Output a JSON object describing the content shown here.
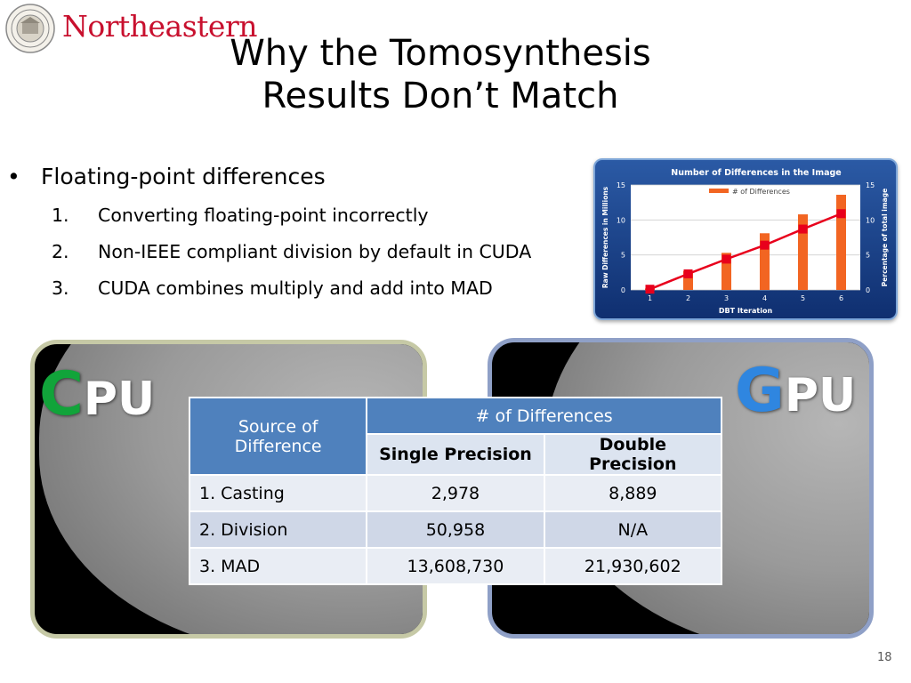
{
  "header": {
    "logo_text": "Northeastern",
    "title_line1": "Why the Tomosynthesis",
    "title_line2": "Results Don’t Match"
  },
  "bullets": {
    "main": "Floating-point differences",
    "sub": [
      {
        "num": "1.",
        "text": "Converting floating-point incorrectly"
      },
      {
        "num": "2.",
        "text": "Non-IEEE compliant division by default in CUDA"
      },
      {
        "num": "3.",
        "text": "CUDA combines multiply and add into MAD"
      }
    ]
  },
  "panels": {
    "cpu": {
      "cap": "C",
      "rest": "PU"
    },
    "gpu": {
      "cap": "G",
      "rest": "PU"
    }
  },
  "table": {
    "header_source": "Source of Difference",
    "header_group": "# of Differences",
    "header_single": "Single Precision",
    "header_double": "Double Precision",
    "rows": [
      {
        "source": "1. Casting",
        "single": "2,978",
        "double": "8,889"
      },
      {
        "source": "2. Division",
        "single": "50,958",
        "double": "N/A"
      },
      {
        "source": "3. MAD",
        "single": "13,608,730",
        "double": "21,930,602"
      }
    ]
  },
  "slide_number": "18",
  "colors": {
    "bar": "#f26522",
    "line": "#e8001c",
    "table_header": "#4f81bd"
  },
  "chart_data": {
    "type": "bar",
    "title": "Number of Differences in the Image",
    "xlabel": "DBT Iteration",
    "ylabel": "Raw Differences in Millions",
    "y2label": "Percentage of total image",
    "categories": [
      "1",
      "2",
      "3",
      "4",
      "5",
      "6"
    ],
    "series": [
      {
        "name": "# of Differences",
        "type": "bar",
        "values": [
          0.2,
          2.7,
          5.3,
          8.1,
          10.8,
          13.6
        ]
      },
      {
        "type": "line",
        "axis": "secondary",
        "values": [
          0.1,
          2.3,
          4.4,
          6.4,
          8.7,
          10.9
        ]
      }
    ],
    "ylim": [
      0,
      15
    ],
    "y2lim": [
      0,
      15
    ],
    "yticks": [
      "0",
      "5",
      "10",
      "15"
    ],
    "y2ticks": [
      "0",
      "5",
      "10",
      "15"
    ],
    "grid": true,
    "legend": "top"
  }
}
